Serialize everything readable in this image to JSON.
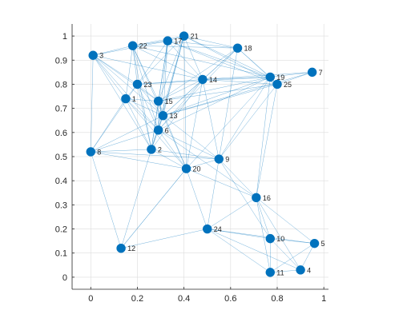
{
  "chart_data": {
    "type": "scatter",
    "title": "",
    "xlabel": "",
    "ylabel": "",
    "xlim": [
      -0.08,
      1.02
    ],
    "ylim": [
      -0.05,
      1.05
    ],
    "xticks": [
      "0",
      "0.2",
      "0.4",
      "0.6",
      "0.8",
      "1"
    ],
    "xtick_values": [
      0,
      0.2,
      0.4,
      0.6,
      0.8,
      1
    ],
    "yticks": [
      "0",
      "0.1",
      "0.2",
      "0.3",
      "0.4",
      "0.5",
      "0.6",
      "0.7",
      "0.8",
      "0.9",
      "1"
    ],
    "ytick_values": [
      0,
      0.1,
      0.2,
      0.3,
      0.4,
      0.5,
      0.6,
      0.7,
      0.8,
      0.9,
      1
    ],
    "grid": true,
    "node_color": "#0072BD",
    "edge_color": "#0072BD",
    "nodes": [
      {
        "id": "1",
        "x": 0.15,
        "y": 0.74
      },
      {
        "id": "2",
        "x": 0.26,
        "y": 0.53
      },
      {
        "id": "3",
        "x": 0.01,
        "y": 0.92
      },
      {
        "id": "4",
        "x": 0.9,
        "y": 0.03
      },
      {
        "id": "5",
        "x": 0.96,
        "y": 0.14
      },
      {
        "id": "6",
        "x": 0.29,
        "y": 0.61
      },
      {
        "id": "7",
        "x": 0.95,
        "y": 0.85
      },
      {
        "id": "8",
        "x": 0.0,
        "y": 0.52
      },
      {
        "id": "9",
        "x": 0.55,
        "y": 0.49
      },
      {
        "id": "10",
        "x": 0.77,
        "y": 0.16
      },
      {
        "id": "11",
        "x": 0.77,
        "y": 0.02
      },
      {
        "id": "12",
        "x": 0.13,
        "y": 0.12
      },
      {
        "id": "13",
        "x": 0.31,
        "y": 0.67
      },
      {
        "id": "14",
        "x": 0.48,
        "y": 0.82
      },
      {
        "id": "15",
        "x": 0.29,
        "y": 0.73
      },
      {
        "id": "16",
        "x": 0.71,
        "y": 0.33
      },
      {
        "id": "17",
        "x": 0.33,
        "y": 0.98
      },
      {
        "id": "18",
        "x": 0.63,
        "y": 0.95
      },
      {
        "id": "19",
        "x": 0.77,
        "y": 0.83
      },
      {
        "id": "20",
        "x": 0.41,
        "y": 0.45
      },
      {
        "id": "21",
        "x": 0.4,
        "y": 1.0
      },
      {
        "id": "22",
        "x": 0.18,
        "y": 0.96
      },
      {
        "id": "23",
        "x": 0.2,
        "y": 0.8
      },
      {
        "id": "24",
        "x": 0.5,
        "y": 0.2
      },
      {
        "id": "25",
        "x": 0.8,
        "y": 0.8
      }
    ],
    "edges": [
      [
        "3",
        "22"
      ],
      [
        "3",
        "1"
      ],
      [
        "3",
        "23"
      ],
      [
        "3",
        "15"
      ],
      [
        "3",
        "13"
      ],
      [
        "3",
        "6"
      ],
      [
        "3",
        "2"
      ],
      [
        "3",
        "8"
      ],
      [
        "3",
        "14"
      ],
      [
        "3",
        "17"
      ],
      [
        "22",
        "17"
      ],
      [
        "22",
        "21"
      ],
      [
        "22",
        "1"
      ],
      [
        "22",
        "23"
      ],
      [
        "22",
        "15"
      ],
      [
        "22",
        "6"
      ],
      [
        "22",
        "2"
      ],
      [
        "22",
        "18"
      ],
      [
        "22",
        "19"
      ],
      [
        "22",
        "14"
      ],
      [
        "22",
        "13"
      ],
      [
        "17",
        "21"
      ],
      [
        "17",
        "18"
      ],
      [
        "17",
        "14"
      ],
      [
        "17",
        "15"
      ],
      [
        "17",
        "13"
      ],
      [
        "17",
        "6"
      ],
      [
        "17",
        "2"
      ],
      [
        "17",
        "19"
      ],
      [
        "17",
        "25"
      ],
      [
        "17",
        "23"
      ],
      [
        "21",
        "18"
      ],
      [
        "21",
        "19"
      ],
      [
        "21",
        "14"
      ],
      [
        "21",
        "13"
      ],
      [
        "21",
        "6"
      ],
      [
        "21",
        "15"
      ],
      [
        "21",
        "2"
      ],
      [
        "21",
        "20"
      ],
      [
        "21",
        "25"
      ],
      [
        "21",
        "23"
      ],
      [
        "18",
        "19"
      ],
      [
        "18",
        "14"
      ],
      [
        "18",
        "25"
      ],
      [
        "18",
        "13"
      ],
      [
        "18",
        "9"
      ],
      [
        "18",
        "15"
      ],
      [
        "18",
        "6"
      ],
      [
        "19",
        "7"
      ],
      [
        "19",
        "25"
      ],
      [
        "19",
        "14"
      ],
      [
        "19",
        "13"
      ],
      [
        "19",
        "15"
      ],
      [
        "19",
        "9"
      ],
      [
        "19",
        "16"
      ],
      [
        "19",
        "6"
      ],
      [
        "19",
        "23"
      ],
      [
        "19",
        "20"
      ],
      [
        "25",
        "7"
      ],
      [
        "25",
        "16"
      ],
      [
        "25",
        "14"
      ],
      [
        "25",
        "9"
      ],
      [
        "25",
        "13"
      ],
      [
        "25",
        "15"
      ],
      [
        "7",
        "14"
      ],
      [
        "7",
        "13"
      ],
      [
        "23",
        "1"
      ],
      [
        "23",
        "15"
      ],
      [
        "23",
        "13"
      ],
      [
        "23",
        "14"
      ],
      [
        "23",
        "6"
      ],
      [
        "23",
        "8"
      ],
      [
        "23",
        "2"
      ],
      [
        "1",
        "8"
      ],
      [
        "1",
        "6"
      ],
      [
        "1",
        "2"
      ],
      [
        "1",
        "15"
      ],
      [
        "1",
        "13"
      ],
      [
        "1",
        "20"
      ],
      [
        "15",
        "13"
      ],
      [
        "15",
        "14"
      ],
      [
        "15",
        "6"
      ],
      [
        "15",
        "2"
      ],
      [
        "15",
        "20"
      ],
      [
        "14",
        "13"
      ],
      [
        "14",
        "6"
      ],
      [
        "14",
        "9"
      ],
      [
        "14",
        "20"
      ],
      [
        "14",
        "2"
      ],
      [
        "13",
        "6"
      ],
      [
        "13",
        "2"
      ],
      [
        "13",
        "20"
      ],
      [
        "13",
        "9"
      ],
      [
        "13",
        "8"
      ],
      [
        "6",
        "2"
      ],
      [
        "6",
        "20"
      ],
      [
        "6",
        "9"
      ],
      [
        "6",
        "8"
      ],
      [
        "6",
        "16"
      ],
      [
        "8",
        "2"
      ],
      [
        "8",
        "20"
      ],
      [
        "8",
        "12"
      ],
      [
        "8",
        "9"
      ],
      [
        "2",
        "20"
      ],
      [
        "2",
        "9"
      ],
      [
        "2",
        "12"
      ],
      [
        "20",
        "9"
      ],
      [
        "20",
        "24"
      ],
      [
        "20",
        "16"
      ],
      [
        "20",
        "12"
      ],
      [
        "9",
        "24"
      ],
      [
        "9",
        "16"
      ],
      [
        "9",
        "10"
      ],
      [
        "16",
        "24"
      ],
      [
        "16",
        "10"
      ],
      [
        "16",
        "11"
      ],
      [
        "16",
        "4"
      ],
      [
        "16",
        "5"
      ],
      [
        "24",
        "10"
      ],
      [
        "24",
        "12"
      ],
      [
        "24",
        "5"
      ],
      [
        "24",
        "11"
      ],
      [
        "24",
        "4"
      ],
      [
        "10",
        "11"
      ],
      [
        "10",
        "4"
      ],
      [
        "10",
        "5"
      ],
      [
        "5",
        "4"
      ],
      [
        "5",
        "11"
      ],
      [
        "4",
        "11"
      ],
      [
        "12",
        "20"
      ]
    ]
  }
}
